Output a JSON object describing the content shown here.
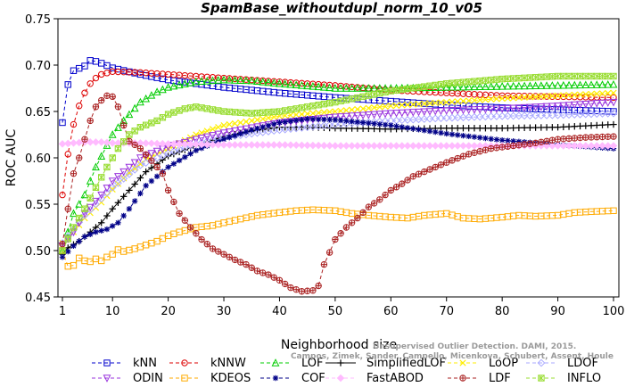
{
  "chart_data": {
    "type": "line",
    "title": "SpamBase_withoutdupl_norm_10_v05",
    "xlabel": "Neighborhood size",
    "ylabel": "ROC AUC",
    "xlim": [
      0,
      100
    ],
    "ylim": [
      0.45,
      0.75
    ],
    "x_ticks": [
      1,
      10,
      20,
      30,
      40,
      50,
      60,
      70,
      80,
      90,
      100
    ],
    "y_ticks": [
      0.45,
      0.5,
      0.55,
      0.6,
      0.65,
      0.7,
      0.75
    ],
    "grid": false,
    "legend_position": "bottom",
    "series": [
      {
        "name": "kNN",
        "color": "#0000cc",
        "marker": "square",
        "dash": "4,3",
        "points": [
          [
            1,
            0.638
          ],
          [
            2,
            0.679
          ],
          [
            3,
            0.694
          ],
          [
            5,
            0.699
          ],
          [
            6,
            0.705
          ],
          [
            7,
            0.704
          ],
          [
            8,
            0.702
          ],
          [
            10,
            0.697
          ],
          [
            15,
            0.69
          ],
          [
            20,
            0.684
          ],
          [
            30,
            0.676
          ],
          [
            40,
            0.67
          ],
          [
            50,
            0.665
          ],
          [
            60,
            0.661
          ],
          [
            70,
            0.657
          ],
          [
            80,
            0.654
          ],
          [
            90,
            0.652
          ],
          [
            100,
            0.65
          ]
        ]
      },
      {
        "name": "kNNW",
        "color": "#dd0000",
        "marker": "circle",
        "dash": "4,3",
        "points": [
          [
            1,
            0.56
          ],
          [
            2,
            0.604
          ],
          [
            3,
            0.636
          ],
          [
            4,
            0.656
          ],
          [
            5,
            0.67
          ],
          [
            6,
            0.68
          ],
          [
            7,
            0.686
          ],
          [
            8,
            0.69
          ],
          [
            10,
            0.693
          ],
          [
            15,
            0.692
          ],
          [
            20,
            0.69
          ],
          [
            30,
            0.686
          ],
          [
            40,
            0.682
          ],
          [
            50,
            0.678
          ],
          [
            60,
            0.673
          ],
          [
            70,
            0.67
          ],
          [
            80,
            0.667
          ],
          [
            90,
            0.666
          ],
          [
            100,
            0.665
          ]
        ]
      },
      {
        "name": "LOF",
        "color": "#00cc00",
        "marker": "triangle-up",
        "dash": "4,3",
        "points": [
          [
            1,
            0.5
          ],
          [
            3,
            0.54
          ],
          [
            5,
            0.56
          ],
          [
            7,
            0.59
          ],
          [
            10,
            0.625
          ],
          [
            12,
            0.64
          ],
          [
            15,
            0.66
          ],
          [
            18,
            0.671
          ],
          [
            20,
            0.676
          ],
          [
            25,
            0.682
          ],
          [
            30,
            0.684
          ],
          [
            35,
            0.683
          ],
          [
            40,
            0.68
          ],
          [
            50,
            0.675
          ],
          [
            60,
            0.675
          ],
          [
            70,
            0.676
          ],
          [
            80,
            0.677
          ],
          [
            90,
            0.678
          ],
          [
            100,
            0.679
          ]
        ]
      },
      {
        "name": "SimplifiedLOF",
        "color": "#000000",
        "marker": "plus",
        "dash": "",
        "points": [
          [
            1,
            0.496
          ],
          [
            2,
            0.503
          ],
          [
            4,
            0.51
          ],
          [
            6,
            0.52
          ],
          [
            8,
            0.53
          ],
          [
            10,
            0.545
          ],
          [
            13,
            0.565
          ],
          [
            16,
            0.585
          ],
          [
            20,
            0.602
          ],
          [
            25,
            0.613
          ],
          [
            30,
            0.623
          ],
          [
            35,
            0.629
          ],
          [
            40,
            0.633
          ],
          [
            45,
            0.633
          ],
          [
            50,
            0.632
          ],
          [
            60,
            0.631
          ],
          [
            70,
            0.632
          ],
          [
            80,
            0.632
          ],
          [
            90,
            0.633
          ],
          [
            100,
            0.636
          ]
        ]
      },
      {
        "name": "LoOP",
        "color": "#ffee00",
        "marker": "x",
        "dash": "4,3",
        "points": [
          [
            1,
            0.508
          ],
          [
            3,
            0.52
          ],
          [
            5,
            0.535
          ],
          [
            8,
            0.552
          ],
          [
            10,
            0.566
          ],
          [
            13,
            0.584
          ],
          [
            16,
            0.598
          ],
          [
            20,
            0.61
          ],
          [
            25,
            0.625
          ],
          [
            30,
            0.635
          ],
          [
            40,
            0.645
          ],
          [
            50,
            0.65
          ],
          [
            60,
            0.656
          ],
          [
            70,
            0.66
          ],
          [
            80,
            0.664
          ],
          [
            90,
            0.667
          ],
          [
            100,
            0.67
          ]
        ]
      },
      {
        "name": "LDOF",
        "color": "#aaaaff",
        "marker": "diamond",
        "dash": "4,3",
        "points": [
          [
            1,
            0.508
          ],
          [
            5,
            0.538
          ],
          [
            10,
            0.568
          ],
          [
            15,
            0.592
          ],
          [
            20,
            0.605
          ],
          [
            25,
            0.615
          ],
          [
            30,
            0.622
          ],
          [
            40,
            0.63
          ],
          [
            50,
            0.636
          ],
          [
            60,
            0.64
          ],
          [
            70,
            0.643
          ],
          [
            80,
            0.645
          ],
          [
            90,
            0.646
          ],
          [
            100,
            0.648
          ]
        ]
      },
      {
        "name": "ODIN",
        "color": "#9933dd",
        "marker": "triangle-down",
        "dash": "4,3",
        "points": [
          [
            1,
            0.505
          ],
          [
            3,
            0.52
          ],
          [
            5,
            0.54
          ],
          [
            8,
            0.56
          ],
          [
            10,
            0.575
          ],
          [
            15,
            0.6
          ],
          [
            20,
            0.612
          ],
          [
            25,
            0.62
          ],
          [
            30,
            0.627
          ],
          [
            40,
            0.638
          ],
          [
            50,
            0.644
          ],
          [
            60,
            0.648
          ],
          [
            70,
            0.651
          ],
          [
            80,
            0.653
          ],
          [
            90,
            0.656
          ],
          [
            100,
            0.66
          ]
        ]
      },
      {
        "name": "KDEOS",
        "color": "#ffaa00",
        "marker": "square",
        "dash": "4,3",
        "points": [
          [
            1,
            0.5
          ],
          [
            2,
            0.483
          ],
          [
            3,
            0.484
          ],
          [
            4,
            0.492
          ],
          [
            5,
            0.489
          ],
          [
            6,
            0.488
          ],
          [
            7,
            0.491
          ],
          [
            8,
            0.489
          ],
          [
            9,
            0.493
          ],
          [
            10,
            0.496
          ],
          [
            11,
            0.501
          ],
          [
            12,
            0.499
          ],
          [
            14,
            0.502
          ],
          [
            16,
            0.506
          ],
          [
            18,
            0.51
          ],
          [
            20,
            0.516
          ],
          [
            22,
            0.52
          ],
          [
            25,
            0.525
          ],
          [
            28,
            0.527
          ],
          [
            30,
            0.53
          ],
          [
            33,
            0.534
          ],
          [
            36,
            0.538
          ],
          [
            40,
            0.541
          ],
          [
            43,
            0.543
          ],
          [
            46,
            0.544
          ],
          [
            50,
            0.543
          ],
          [
            53,
            0.54
          ],
          [
            56,
            0.538
          ],
          [
            60,
            0.536
          ],
          [
            63,
            0.535
          ],
          [
            66,
            0.538
          ],
          [
            70,
            0.54
          ],
          [
            73,
            0.535
          ],
          [
            76,
            0.534
          ],
          [
            80,
            0.536
          ],
          [
            83,
            0.538
          ],
          [
            86,
            0.537
          ],
          [
            90,
            0.538
          ],
          [
            93,
            0.541
          ],
          [
            96,
            0.542
          ],
          [
            100,
            0.543
          ]
        ]
      },
      {
        "name": "COF",
        "color": "#000088",
        "marker": "asterisk",
        "dash": "4,3",
        "points": [
          [
            1,
            0.493
          ],
          [
            3,
            0.505
          ],
          [
            5,
            0.515
          ],
          [
            7,
            0.52
          ],
          [
            9,
            0.523
          ],
          [
            11,
            0.53
          ],
          [
            13,
            0.545
          ],
          [
            16,
            0.57
          ],
          [
            20,
            0.59
          ],
          [
            25,
            0.608
          ],
          [
            30,
            0.62
          ],
          [
            35,
            0.63
          ],
          [
            40,
            0.638
          ],
          [
            45,
            0.642
          ],
          [
            50,
            0.641
          ],
          [
            55,
            0.638
          ],
          [
            60,
            0.635
          ],
          [
            70,
            0.626
          ],
          [
            80,
            0.619
          ],
          [
            90,
            0.614
          ],
          [
            100,
            0.61
          ]
        ]
      },
      {
        "name": "FastABOD",
        "color": "#ffbbff",
        "marker": "diamond-filled",
        "dash": "4,3",
        "points": [
          [
            1,
            0.615
          ],
          [
            3,
            0.616
          ],
          [
            5,
            0.617
          ],
          [
            8,
            0.617
          ],
          [
            10,
            0.616
          ],
          [
            15,
            0.616
          ],
          [
            20,
            0.615
          ],
          [
            30,
            0.614
          ],
          [
            40,
            0.614
          ],
          [
            50,
            0.613
          ],
          [
            60,
            0.613
          ],
          [
            70,
            0.613
          ],
          [
            80,
            0.613
          ],
          [
            90,
            0.613
          ],
          [
            100,
            0.613
          ]
        ]
      },
      {
        "name": "LDF",
        "color": "#aa2222",
        "marker": "crosscircle",
        "dash": "4,3",
        "points": [
          [
            1,
            0.507
          ],
          [
            2,
            0.545
          ],
          [
            3,
            0.583
          ],
          [
            4,
            0.6
          ],
          [
            5,
            0.62
          ],
          [
            6,
            0.64
          ],
          [
            7,
            0.655
          ],
          [
            8,
            0.662
          ],
          [
            9,
            0.667
          ],
          [
            10,
            0.666
          ],
          [
            11,
            0.655
          ],
          [
            12,
            0.635
          ],
          [
            13,
            0.618
          ],
          [
            15,
            0.61
          ],
          [
            17,
            0.597
          ],
          [
            19,
            0.583
          ],
          [
            20,
            0.565
          ],
          [
            22,
            0.54
          ],
          [
            24,
            0.525
          ],
          [
            26,
            0.512
          ],
          [
            28,
            0.502
          ],
          [
            30,
            0.496
          ],
          [
            32,
            0.49
          ],
          [
            34,
            0.485
          ],
          [
            36,
            0.478
          ],
          [
            38,
            0.474
          ],
          [
            40,
            0.468
          ],
          [
            42,
            0.46
          ],
          [
            44,
            0.456
          ],
          [
            46,
            0.457
          ],
          [
            47,
            0.462
          ],
          [
            48,
            0.485
          ],
          [
            49,
            0.498
          ],
          [
            50,
            0.512
          ],
          [
            52,
            0.525
          ],
          [
            54,
            0.535
          ],
          [
            56,
            0.547
          ],
          [
            58,
            0.555
          ],
          [
            60,
            0.565
          ],
          [
            62,
            0.572
          ],
          [
            64,
            0.58
          ],
          [
            66,
            0.585
          ],
          [
            68,
            0.59
          ],
          [
            70,
            0.595
          ],
          [
            74,
            0.604
          ],
          [
            78,
            0.61
          ],
          [
            82,
            0.613
          ],
          [
            86,
            0.616
          ],
          [
            90,
            0.62
          ],
          [
            95,
            0.622
          ],
          [
            100,
            0.623
          ]
        ]
      },
      {
        "name": "INFLO",
        "color": "#99dd33",
        "marker": "starbox",
        "dash": "4,3",
        "points": [
          [
            1,
            0.5
          ],
          [
            3,
            0.525
          ],
          [
            5,
            0.545
          ],
          [
            7,
            0.568
          ],
          [
            9,
            0.59
          ],
          [
            11,
            0.61
          ],
          [
            13,
            0.625
          ],
          [
            15,
            0.633
          ],
          [
            18,
            0.64
          ],
          [
            20,
            0.647
          ],
          [
            23,
            0.653
          ],
          [
            25,
            0.655
          ],
          [
            28,
            0.652
          ],
          [
            30,
            0.65
          ],
          [
            35,
            0.648
          ],
          [
            40,
            0.65
          ],
          [
            50,
            0.66
          ],
          [
            60,
            0.672
          ],
          [
            70,
            0.68
          ],
          [
            80,
            0.685
          ],
          [
            90,
            0.688
          ],
          [
            100,
            0.688
          ]
        ]
      }
    ],
    "watermark": [
      "Unsupervised Outlier Detection. DAMI, 2015.",
      "Campos, Zimek, Sander, Campello, Micenkova, Schubert, Assent, Houle"
    ]
  }
}
